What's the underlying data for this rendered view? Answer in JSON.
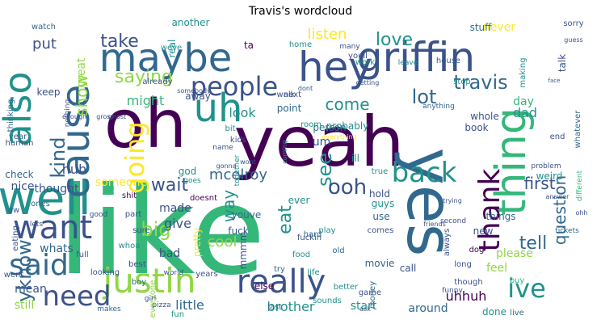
{
  "title": "Travis's wordcloud",
  "palette": {
    "dark_purple": "#440154",
    "indigo": "#3b528b",
    "teal_blue": "#31688e",
    "teal": "#21918c",
    "green": "#35b779",
    "lime": "#90d743",
    "yellow": "#fde725"
  },
  "words": [
    "like",
    "yeah",
    "oh",
    "uh",
    "yes",
    "well",
    "maybe",
    "hey",
    "griffin",
    "cause",
    "thing",
    "also",
    "want",
    "said",
    "really",
    "justin",
    "people",
    "back",
    "going",
    "need",
    "thank",
    "ive",
    "love",
    "saying",
    "travis",
    "see",
    "kind",
    "yknow",
    "show",
    "ooh",
    "lot",
    "take",
    "listen",
    "wait",
    "come",
    "question",
    "first",
    "tell",
    "big",
    "mcelroy",
    "eat",
    "way",
    "might",
    "look",
    "dad",
    "day",
    "never",
    "cool",
    "uhhuh",
    "little",
    "brother",
    "start",
    "put",
    "huh",
    "thought",
    "someone",
    "made",
    "give",
    "pretty",
    "mmmm",
    "whats",
    "mean",
    "nice",
    "still",
    "check",
    "human",
    "youve",
    "doesnt",
    "god",
    "ever",
    "please",
    "bad",
    "feel",
    "new",
    "use",
    "things",
    "guys",
    "weird",
    "hold",
    "problem",
    "answer",
    "end",
    "face",
    "whatever",
    "different",
    "ill",
    "fuck",
    "fuckin",
    "around",
    "done",
    "live",
    "long",
    "call",
    "try",
    "else",
    "last",
    "fun",
    "years",
    "sounds",
    "better",
    "everyone",
    "everything",
    "movie",
    "food",
    "old",
    "ta",
    "another",
    "real",
    "weve",
    "great",
    "work",
    "leave",
    "house",
    "home",
    "many",
    "next",
    "walk",
    "stuff",
    "point",
    "talk",
    "sorry",
    "guess",
    "youll",
    "getting",
    "person",
    "probably",
    "book",
    "whole",
    "anything",
    "keep",
    "um",
    "away",
    "already",
    "watch",
    "stop",
    "making",
    "true",
    "dog",
    "tickets",
    "always",
    "though",
    "buy",
    "shit",
    "part",
    "ones",
    "sure",
    "whoa",
    "lets",
    "full",
    "best",
    "looking",
    "boy",
    "girl",
    "world",
    "went",
    "eating",
    "makes",
    "pizza",
    "year",
    "thinking",
    "nothing",
    "bit",
    "kids",
    "name",
    "wont",
    "together",
    "coming",
    "away",
    "room",
    "play",
    "hard",
    "life",
    "money",
    "game",
    "ask",
    "funny",
    "friends",
    "second",
    "comes",
    "trying",
    "ohh",
    "aw",
    "good",
    "goes",
    "gonna",
    "somebody",
    "dont",
    "gross",
    "ghost",
    "enough"
  ]
}
